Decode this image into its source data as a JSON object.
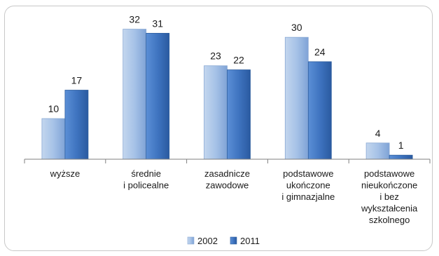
{
  "chart_data": {
    "type": "bar",
    "categories": [
      [
        "wyższe"
      ],
      [
        "średnie",
        "i policealne"
      ],
      [
        "zasadnicze",
        "zawodowe"
      ],
      [
        "podstawowe",
        "ukończone",
        "i gimnazjalne"
      ],
      [
        "podstawowe",
        "nieukończone",
        "i bez",
        "wykształcenia",
        "szkolnego"
      ]
    ],
    "series": [
      {
        "name": "2002",
        "values": [
          10,
          32,
          23,
          30,
          4
        ],
        "color": "#9dbce4"
      },
      {
        "name": "2011",
        "values": [
          17,
          31,
          22,
          24,
          1
        ],
        "color": "#3f74c0"
      }
    ],
    "ylim": [
      0,
      34
    ],
    "grid": false,
    "legend": "bottom",
    "title": "",
    "xlabel": "",
    "ylabel": ""
  }
}
